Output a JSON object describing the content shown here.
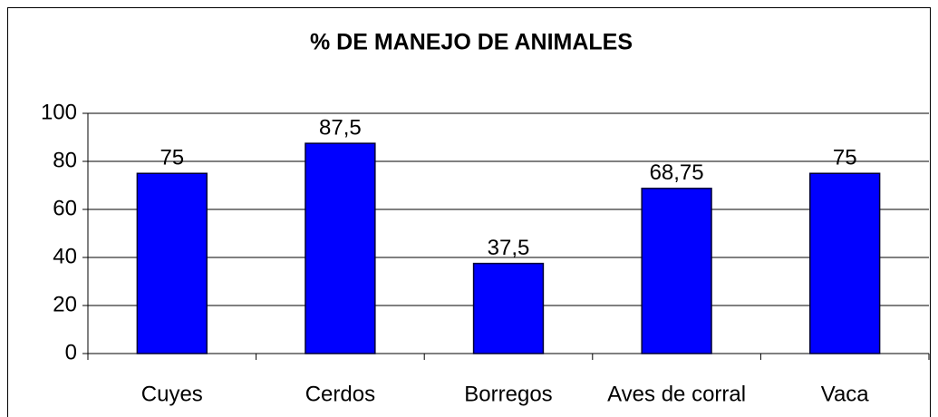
{
  "chart_data": {
    "type": "bar",
    "title": "% DE MANEJO DE ANIMALES",
    "categories": [
      "Cuyes",
      "Cerdos",
      "Borregos",
      "Aves de corral",
      "Vaca"
    ],
    "values": [
      75,
      87.5,
      37.5,
      68.75,
      75
    ],
    "value_labels": [
      "75",
      "87,5",
      "37,5",
      "68,75",
      "75"
    ],
    "color": "#0000ff",
    "ylim": [
      0,
      100
    ],
    "yticks": [
      0,
      20,
      40,
      60,
      80,
      100
    ],
    "grid": true
  }
}
